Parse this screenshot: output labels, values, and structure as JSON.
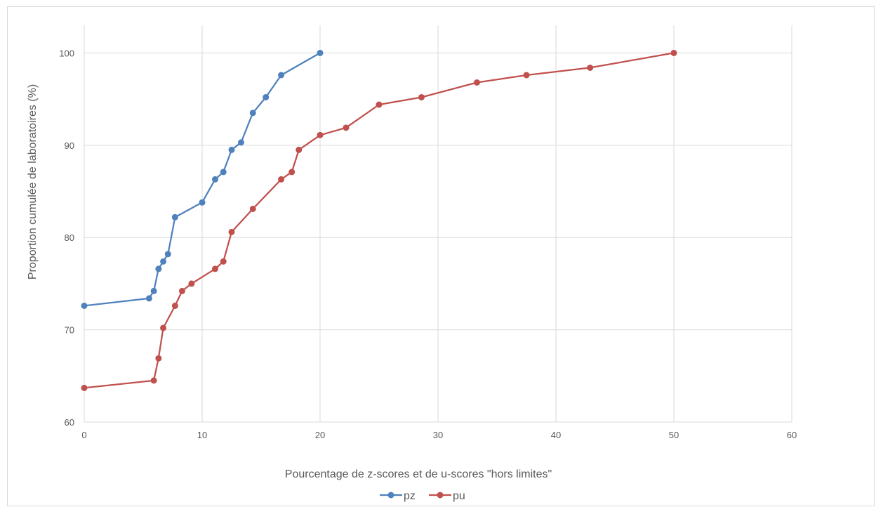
{
  "chart_data": {
    "type": "line",
    "title": "",
    "xlabel": "Pourcentage de z-scores et de u-scores \"hors limites\"",
    "ylabel": "Proportion cumulée de laboratoires (%)",
    "xlim": [
      0,
      60
    ],
    "ylim": [
      60,
      103
    ],
    "x_ticks": [
      0,
      10,
      20,
      30,
      40,
      50,
      60
    ],
    "y_ticks": [
      60,
      70,
      80,
      90,
      100
    ],
    "grid": true,
    "legend_position": "bottom",
    "series": [
      {
        "name": "pz",
        "color": "#4f81bd",
        "points": [
          [
            0,
            72.6
          ],
          [
            5.5,
            73.4
          ],
          [
            5.9,
            74.2
          ],
          [
            6.3,
            76.6
          ],
          [
            6.7,
            77.4
          ],
          [
            7.1,
            78.2
          ],
          [
            7.7,
            82.2
          ],
          [
            10.0,
            83.8
          ],
          [
            11.1,
            86.3
          ],
          [
            11.8,
            87.1
          ],
          [
            12.5,
            89.5
          ],
          [
            13.3,
            90.3
          ],
          [
            14.3,
            93.5
          ],
          [
            15.4,
            95.2
          ],
          [
            16.7,
            97.6
          ],
          [
            20.0,
            100
          ]
        ]
      },
      {
        "name": "pu",
        "color": "#c0504d",
        "points": [
          [
            0,
            63.7
          ],
          [
            5.9,
            64.5
          ],
          [
            6.3,
            66.9
          ],
          [
            6.7,
            70.2
          ],
          [
            7.7,
            72.6
          ],
          [
            8.3,
            74.2
          ],
          [
            9.1,
            75.0
          ],
          [
            11.1,
            76.6
          ],
          [
            11.8,
            77.4
          ],
          [
            12.5,
            80.6
          ],
          [
            14.3,
            83.1
          ],
          [
            16.7,
            86.3
          ],
          [
            17.6,
            87.1
          ],
          [
            18.2,
            89.5
          ],
          [
            20.0,
            91.1
          ],
          [
            22.2,
            91.9
          ],
          [
            25.0,
            94.4
          ],
          [
            28.6,
            95.2
          ],
          [
            33.3,
            96.8
          ],
          [
            37.5,
            97.6
          ],
          [
            42.9,
            98.4
          ],
          [
            50.0,
            100
          ]
        ]
      }
    ]
  }
}
